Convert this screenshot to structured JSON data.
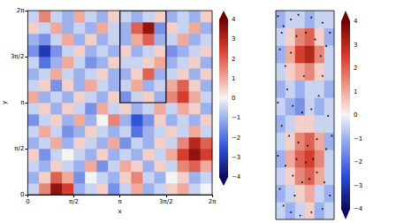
{
  "chart_data": [
    {
      "type": "heatmap",
      "xlabel": "x",
      "ylabel": "y",
      "xlim": [
        0,
        6.2832
      ],
      "ylim": [
        0,
        6.2832
      ],
      "xticks": [
        0,
        {
          "value": 1.5708,
          "label": "π/2"
        },
        {
          "value": 3.1416,
          "label": "π"
        },
        {
          "value": 4.7124,
          "label": "3π/2"
        },
        {
          "value": 6.2832,
          "label": "2π"
        }
      ],
      "yticks": [
        0,
        {
          "value": 1.5708,
          "label": "π/2"
        },
        {
          "value": 3.1416,
          "label": "π"
        },
        {
          "value": 4.7124,
          "label": "3π/2"
        },
        {
          "value": 6.2832,
          "label": "2π"
        }
      ],
      "colorbar": {
        "range": [
          -4,
          4
        ],
        "ticks": [
          {
            "value": -4,
            "label": "−4"
          },
          {
            "value": -3,
            "label": "−3"
          },
          {
            "value": -2,
            "label": "−2"
          },
          {
            "value": -1,
            "label": "−1"
          },
          0,
          1,
          2,
          3,
          4
        ]
      },
      "box": {
        "x": [
          3.1416,
          4.7124
        ],
        "y": [
          3.1416,
          6.2832
        ]
      },
      "cells": [
        [
          -0.5,
          1.5,
          3.5,
          2.5,
          -1,
          -0.5,
          0.5,
          -1.5,
          -0.5,
          1,
          -1,
          -0.5,
          0.5,
          1,
          -0.5,
          0
        ],
        [
          -1,
          0.5,
          2,
          1,
          -1.5,
          0,
          -0.5,
          -1,
          0.5,
          1.5,
          -0.5,
          -1,
          0,
          0.5,
          -1,
          -0.5
        ],
        [
          -0.5,
          -1,
          0.5,
          -0.5,
          -1,
          1,
          -1.5,
          -0.5,
          1,
          0.5,
          -1,
          0.5,
          -0.5,
          1.5,
          2,
          1
        ],
        [
          0.5,
          -1.5,
          -0.5,
          0,
          -0.5,
          -1,
          0.5,
          -1,
          -0.5,
          -1,
          0.5,
          -0.5,
          1,
          2.5,
          3.5,
          2.5
        ],
        [
          -1,
          -0.5,
          1,
          -1,
          0.5,
          -0.5,
          -1,
          1,
          -1.5,
          -0.5,
          -1,
          0.5,
          -0.5,
          1.5,
          3,
          2
        ],
        [
          -0.5,
          1,
          -0.5,
          -1.5,
          -1,
          0.5,
          -0.5,
          -1,
          -0.5,
          -2,
          -1,
          -0.5,
          0.5,
          -0.5,
          1,
          -0.5
        ],
        [
          -1.5,
          -0.5,
          0.5,
          -1,
          1,
          -1,
          0,
          1.5,
          -1,
          -2.5,
          -1.5,
          0.5,
          -1,
          -0.5,
          -1,
          0.5
        ],
        [
          -0.5,
          0.5,
          -1,
          0.5,
          -0.5,
          -1.5,
          1,
          -0.5,
          0.5,
          -1,
          -0.5,
          1,
          -0.5,
          1,
          0.5,
          -1
        ],
        [
          1,
          -1,
          -0.5,
          -1,
          0.5,
          -0.5,
          -1,
          0.5,
          -1.5,
          -0.5,
          0.5,
          -1,
          1.5,
          2.5,
          1,
          -0.5
        ],
        [
          -0.5,
          0.5,
          -1.5,
          0.5,
          -1,
          1,
          -0.5,
          -1,
          -0.5,
          1,
          -1,
          -0.5,
          1,
          2,
          0.5,
          -1
        ],
        [
          -1,
          -0.5,
          1,
          -0.5,
          -1,
          -0.5,
          0.5,
          -1,
          -1,
          0.5,
          2,
          -1,
          -0.5,
          0.5,
          -1,
          0.5
        ],
        [
          -0.5,
          -2,
          -1,
          1,
          -0.5,
          -1.5,
          -1,
          0.5,
          -0.5,
          -0.5,
          0.5,
          1,
          -1,
          -0.5,
          0.5,
          -1
        ],
        [
          -1.5,
          -3,
          -1.5,
          -0.5,
          0.5,
          -1,
          -0.5,
          -1,
          0.5,
          -1,
          -0.5,
          0.5,
          -1.5,
          -1,
          -0.5,
          0.5
        ],
        [
          -1,
          -1.5,
          -0.5,
          1,
          -1,
          0.5,
          -1,
          -0.5,
          -1,
          1,
          2,
          -1,
          -0.5,
          1,
          -1,
          -0.5
        ],
        [
          0.5,
          -0.5,
          1,
          -1,
          -0.5,
          -1,
          1,
          -0.5,
          -1,
          2,
          3.5,
          -1.5,
          0.5,
          -0.5,
          1,
          -1
        ],
        [
          -0.5,
          1.5,
          -0.5,
          -1,
          1,
          -0.5,
          -1,
          0.5,
          -0.5,
          -1,
          -0.5,
          0.5,
          -1,
          -0.5,
          -1,
          0.5
        ]
      ]
    },
    {
      "type": "heatmap",
      "tick_labels": false,
      "xlim": [
        3.1416,
        4.7124
      ],
      "ylim": [
        3.1416,
        6.2832
      ],
      "colorbar": {
        "range": [
          -4,
          4
        ],
        "ticks": [
          {
            "value": -4,
            "label": "−4"
          },
          {
            "value": -3,
            "label": "−3"
          },
          {
            "value": -2,
            "label": "−2"
          },
          {
            "value": -1,
            "label": "−1"
          },
          0,
          1,
          2,
          3,
          4
        ]
      },
      "cells": [
        [
          -0.5,
          -1,
          -0.5,
          0.5,
          -1,
          -0.5
        ],
        [
          -1,
          -0.5,
          0.5,
          1,
          -0.5,
          -1
        ],
        [
          -0.5,
          0.5,
          1.5,
          2,
          1,
          -0.5
        ],
        [
          -1,
          1,
          2,
          2.5,
          1.5,
          -0.5
        ],
        [
          -0.5,
          0.5,
          1.5,
          2,
          1,
          -1
        ],
        [
          -1,
          -0.5,
          0.5,
          0.5,
          -0.5,
          -0.5
        ],
        [
          -0.5,
          -1,
          -1.5,
          -0.5,
          -1,
          -0.5
        ],
        [
          -1,
          -0.5,
          -1,
          -0.5,
          -0.5,
          -1
        ],
        [
          -0.5,
          0.5,
          1,
          1.5,
          0.5,
          -0.5
        ],
        [
          -1,
          1,
          2.5,
          3,
          1.5,
          -0.5
        ],
        [
          -0.5,
          0.5,
          1.5,
          2,
          0.5,
          -1
        ],
        [
          -1,
          -0.5,
          -0.5,
          -1,
          -0.5,
          -0.5
        ]
      ],
      "points": {
        "x": [
          3.2,
          3.35,
          3.55,
          3.75,
          4.1,
          4.4,
          4.6,
          3.25,
          3.4,
          3.45,
          3.6,
          3.85,
          4.1,
          4.3,
          4.4,
          4.35,
          4.2,
          3.95,
          3.7,
          3.55,
          4.55,
          4.65,
          3.2,
          3.3,
          3.5,
          3.75,
          4.0,
          4.25,
          4.5,
          3.2,
          3.4,
          3.6,
          3.85,
          4.05,
          4.25,
          4.45,
          4.6,
          3.25,
          3.35,
          3.55,
          3.8,
          4.1,
          4.4,
          3.95,
          3.7,
          4.15,
          3.3,
          4.5,
          3.9,
          3.65
        ],
        "y": [
          6.2,
          6.05,
          6.15,
          6.22,
          6.18,
          6.1,
          5.95,
          5.7,
          5.45,
          5.1,
          4.85,
          4.75,
          4.8,
          5.0,
          5.3,
          5.6,
          5.85,
          5.95,
          5.9,
          5.65,
          4.7,
          4.4,
          4.9,
          4.55,
          4.4,
          4.3,
          4.25,
          4.35,
          4.2,
          4.1,
          3.95,
          3.8,
          3.7,
          3.75,
          3.85,
          3.7,
          3.5,
          3.6,
          3.35,
          3.25,
          3.2,
          3.25,
          3.3,
          4.0,
          4.05,
          4.05,
          5.95,
          5.75,
          5.3,
          3.5
        ]
      }
    }
  ]
}
